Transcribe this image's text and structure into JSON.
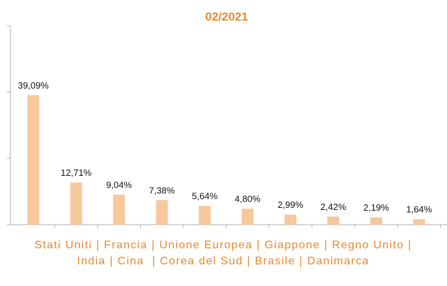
{
  "chart_data": {
    "type": "bar",
    "title": "02/2021",
    "values": [
      39.09,
      12.71,
      9.04,
      7.38,
      5.64,
      4.8,
      2.99,
      2.42,
      2.19,
      1.64
    ],
    "value_labels": [
      "39,09%",
      "12,71%",
      "9,04%",
      "7,38%",
      "5,64%",
      "4,80%",
      "2,99%",
      "2,42%",
      "2,19%",
      "1,64%"
    ],
    "xlabel": "Stati Uniti | Francia | Unione Europea | Giappone | Regno Unito | India | Cina  | Corea del Sud | Brasile | Danimarca",
    "color": "#f6c89b",
    "ylim": [
      0,
      60
    ],
    "yticks": [
      0,
      20,
      40,
      60
    ],
    "grid": false
  }
}
